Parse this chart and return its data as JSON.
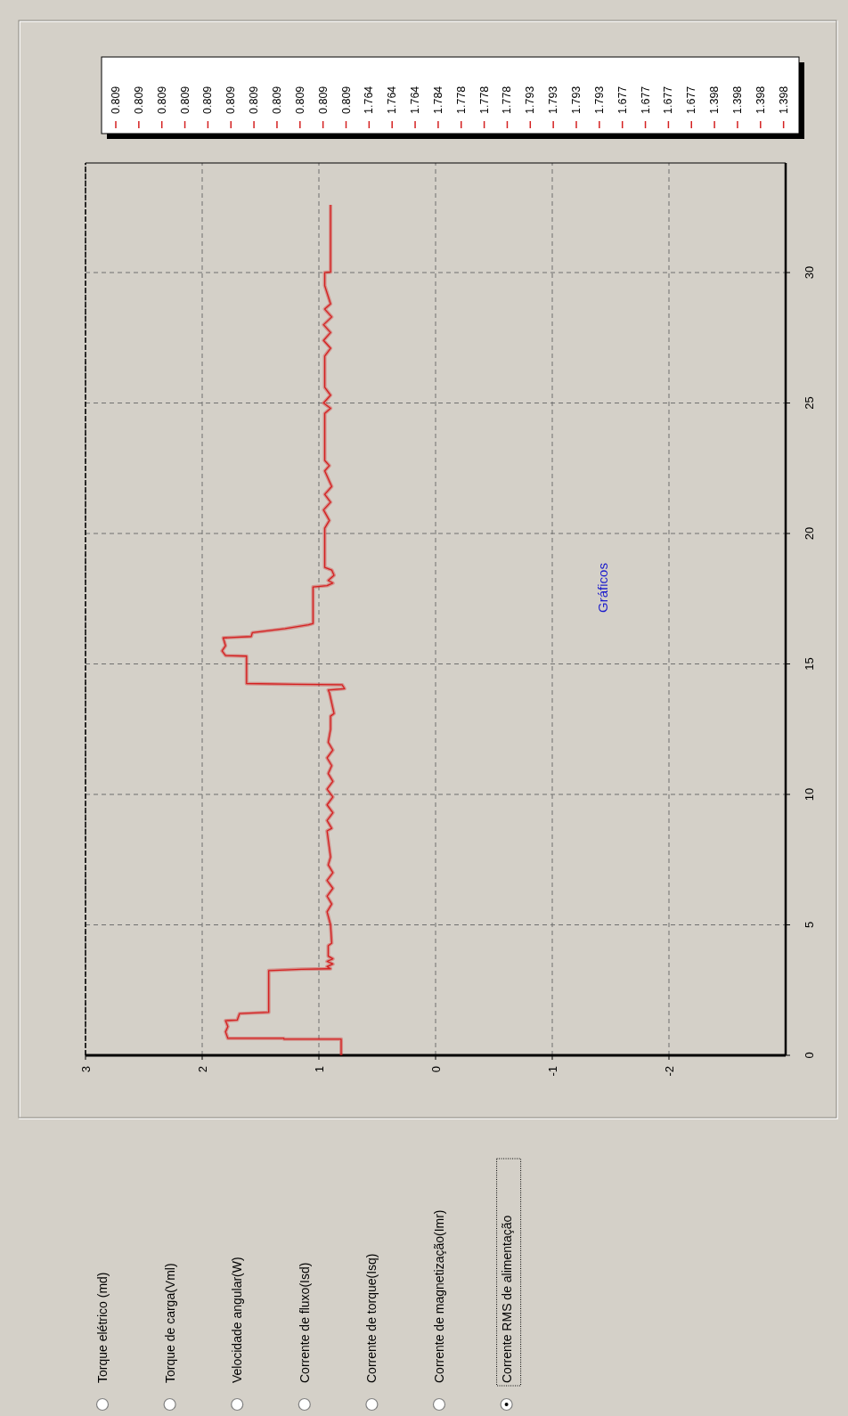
{
  "chart_data": {
    "type": "line",
    "title": "Gráficos",
    "x": [
      0,
      0.62,
      0.62,
      0.65,
      0.65,
      0.9,
      1.1,
      1.33,
      1.35,
      1.6,
      1.65,
      3.25,
      3.3,
      3.32,
      3.4,
      3.5,
      3.6,
      3.7,
      3.8,
      4.2,
      4.3,
      5.0,
      5.5,
      5.8,
      6.1,
      6.4,
      6.7,
      7.0,
      7.3,
      7.6,
      8.6,
      8.7,
      9.0,
      9.3,
      9.6,
      9.9,
      10.2,
      10.5,
      10.8,
      11.1,
      11.4,
      11.7,
      12.0,
      12.5,
      13.0,
      13.1,
      13.9,
      14.0,
      14.05,
      14.2,
      14.22,
      14.25,
      15.3,
      15.32,
      15.5,
      15.7,
      16.0,
      16.05,
      16.2,
      16.35,
      16.5,
      16.55,
      17.95,
      18.0,
      18.1,
      18.2,
      18.4,
      18.6,
      18.7,
      19.5,
      20.2,
      20.5,
      20.9,
      21.2,
      21.5,
      21.8,
      22.4,
      22.6,
      22.8,
      23.5,
      24.6,
      24.8,
      25.0,
      25.3,
      25.6,
      26.0,
      26.8,
      27.1,
      27.4,
      27.7,
      28.0,
      28.3,
      28.6,
      28.8,
      29.5,
      30.0,
      30.02,
      32.6
    ],
    "series": [
      {
        "color": "#d42020",
        "values": [
          0.809,
          0.809,
          1.3,
          1.3,
          1.78,
          1.8,
          1.78,
          1.8,
          1.7,
          1.68,
          1.43,
          1.43,
          1.15,
          0.9,
          0.93,
          0.88,
          0.93,
          0.88,
          0.92,
          0.92,
          0.89,
          0.9,
          0.93,
          0.89,
          0.93,
          0.88,
          0.93,
          0.88,
          0.92,
          0.9,
          0.93,
          0.89,
          0.93,
          0.88,
          0.93,
          0.88,
          0.93,
          0.88,
          0.92,
          0.89,
          0.93,
          0.88,
          0.92,
          0.9,
          0.9,
          0.87,
          0.91,
          0.92,
          0.78,
          0.8,
          1.2,
          1.62,
          1.62,
          1.8,
          1.83,
          1.8,
          1.82,
          1.58,
          1.57,
          1.29,
          1.09,
          1.05,
          1.05,
          0.93,
          0.88,
          0.92,
          0.87,
          0.89,
          0.95,
          0.95,
          0.95,
          0.91,
          0.96,
          0.9,
          0.95,
          0.89,
          0.95,
          0.91,
          0.95,
          0.95,
          0.95,
          0.9,
          0.96,
          0.9,
          0.95,
          0.95,
          0.95,
          0.9,
          0.96,
          0.9,
          0.96,
          0.89,
          0.95,
          0.9,
          0.95,
          0.95,
          0.9,
          0.9
        ]
      }
    ],
    "orientation": "horizontal",
    "ylim": [
      0,
      34.2
    ],
    "yticks": [
      0,
      5,
      10,
      15,
      20,
      25,
      30
    ],
    "xlim": [
      3,
      -3
    ],
    "xticks": [
      3,
      2,
      1,
      0,
      -1,
      -2
    ],
    "grid": true,
    "line_style": "solid",
    "marker": "none",
    "annotations": [
      "Torque elétrico (md)",
      "Torque de carga(Vml)",
      "Velocidade angular(W)",
      "Corrente de fluxo(Isd)",
      "Corrente de torque(Isq)",
      "Corrente de magnetização(Imr)",
      "Corrente RMS de alimentação",
      "0.809",
      "0.809",
      "0.809",
      "0.809",
      "0.809",
      "0.809",
      "0.809",
      "0.809",
      "0.809",
      "0.809",
      "0.809",
      "1.764",
      "1.764",
      "1.764",
      "1.784",
      "1.778",
      "1.778",
      "1.778",
      "1.793",
      "1.793",
      "1.793",
      "1.793",
      "1.677",
      "1.677",
      "1.677",
      "1.677",
      "1.398",
      "1.398",
      "1.398",
      "1.398"
    ]
  }
}
